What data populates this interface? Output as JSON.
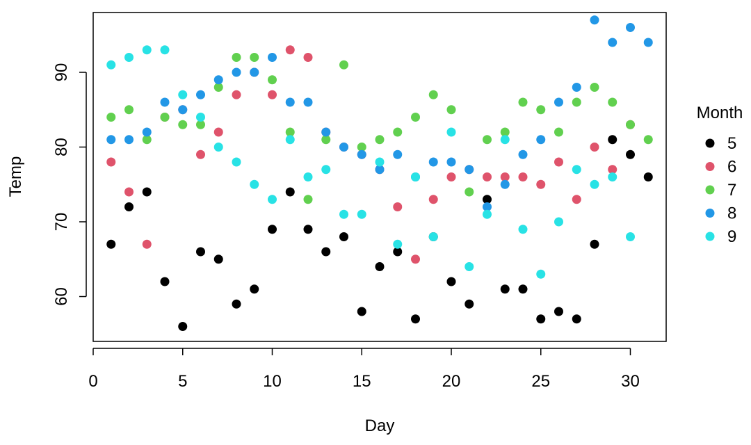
{
  "chart_data": {
    "type": "scatter",
    "title": "",
    "xlabel": "Day",
    "ylabel": "Temp",
    "xlim": [
      0,
      32
    ],
    "ylim": [
      54,
      98
    ],
    "x_ticks": [
      0,
      5,
      10,
      15,
      20,
      25,
      30
    ],
    "y_ticks": [
      60,
      70,
      80,
      90
    ],
    "grid": false,
    "legend": {
      "title": "Month",
      "position": "right"
    },
    "series": [
      {
        "name": "5",
        "color": "#000000",
        "x": [
          1,
          2,
          3,
          4,
          5,
          6,
          7,
          8,
          9,
          10,
          11,
          12,
          13,
          14,
          15,
          16,
          17,
          18,
          19,
          20,
          21,
          22,
          23,
          24,
          25,
          26,
          27,
          28,
          29,
          30,
          31
        ],
        "y": [
          67,
          72,
          74,
          62,
          56,
          66,
          65,
          59,
          61,
          69,
          74,
          69,
          66,
          68,
          58,
          64,
          66,
          57,
          68,
          62,
          59,
          73,
          61,
          61,
          57,
          58,
          57,
          67,
          81,
          79,
          76
        ]
      },
      {
        "name": "6",
        "color": "#DF536B",
        "x": [
          1,
          2,
          3,
          4,
          5,
          6,
          7,
          8,
          9,
          10,
          11,
          12,
          13,
          14,
          15,
          16,
          17,
          18,
          19,
          20,
          21,
          22,
          23,
          24,
          25,
          26,
          27,
          28,
          29,
          30
        ],
        "y": [
          78,
          74,
          67,
          84,
          85,
          79,
          82,
          87,
          90,
          87,
          93,
          92,
          82,
          80,
          79,
          77,
          72,
          65,
          73,
          76,
          77,
          76,
          76,
          76,
          75,
          78,
          73,
          80,
          77,
          83
        ]
      },
      {
        "name": "7",
        "color": "#61D04F",
        "x": [
          1,
          2,
          3,
          4,
          5,
          6,
          7,
          8,
          9,
          10,
          11,
          12,
          13,
          14,
          15,
          16,
          17,
          18,
          19,
          20,
          21,
          22,
          23,
          24,
          25,
          26,
          27,
          28,
          29,
          30,
          31
        ],
        "y": [
          84,
          85,
          81,
          84,
          83,
          83,
          88,
          92,
          92,
          89,
          82,
          73,
          81,
          91,
          80,
          81,
          82,
          84,
          87,
          85,
          74,
          81,
          82,
          86,
          85,
          82,
          86,
          88,
          86,
          83,
          81
        ]
      },
      {
        "name": "8",
        "color": "#2297E6",
        "x": [
          1,
          2,
          3,
          4,
          5,
          6,
          7,
          8,
          9,
          10,
          11,
          12,
          13,
          14,
          15,
          16,
          17,
          18,
          19,
          20,
          21,
          22,
          23,
          24,
          25,
          26,
          27,
          28,
          29,
          30,
          31
        ],
        "y": [
          81,
          81,
          82,
          86,
          85,
          87,
          89,
          90,
          90,
          92,
          86,
          86,
          82,
          80,
          79,
          77,
          79,
          76,
          78,
          78,
          77,
          72,
          75,
          79,
          81,
          86,
          88,
          97,
          94,
          96,
          94
        ]
      },
      {
        "name": "9",
        "color": "#28E2E5",
        "x": [
          1,
          2,
          3,
          4,
          5,
          6,
          7,
          8,
          9,
          10,
          11,
          12,
          13,
          14,
          15,
          16,
          17,
          18,
          19,
          20,
          21,
          22,
          23,
          24,
          25,
          26,
          27,
          28,
          29,
          30
        ],
        "y": [
          91,
          92,
          93,
          93,
          87,
          84,
          80,
          78,
          75,
          73,
          81,
          76,
          77,
          71,
          71,
          78,
          67,
          76,
          68,
          82,
          64,
          71,
          81,
          69,
          63,
          70,
          77,
          75,
          76,
          68
        ]
      }
    ]
  }
}
